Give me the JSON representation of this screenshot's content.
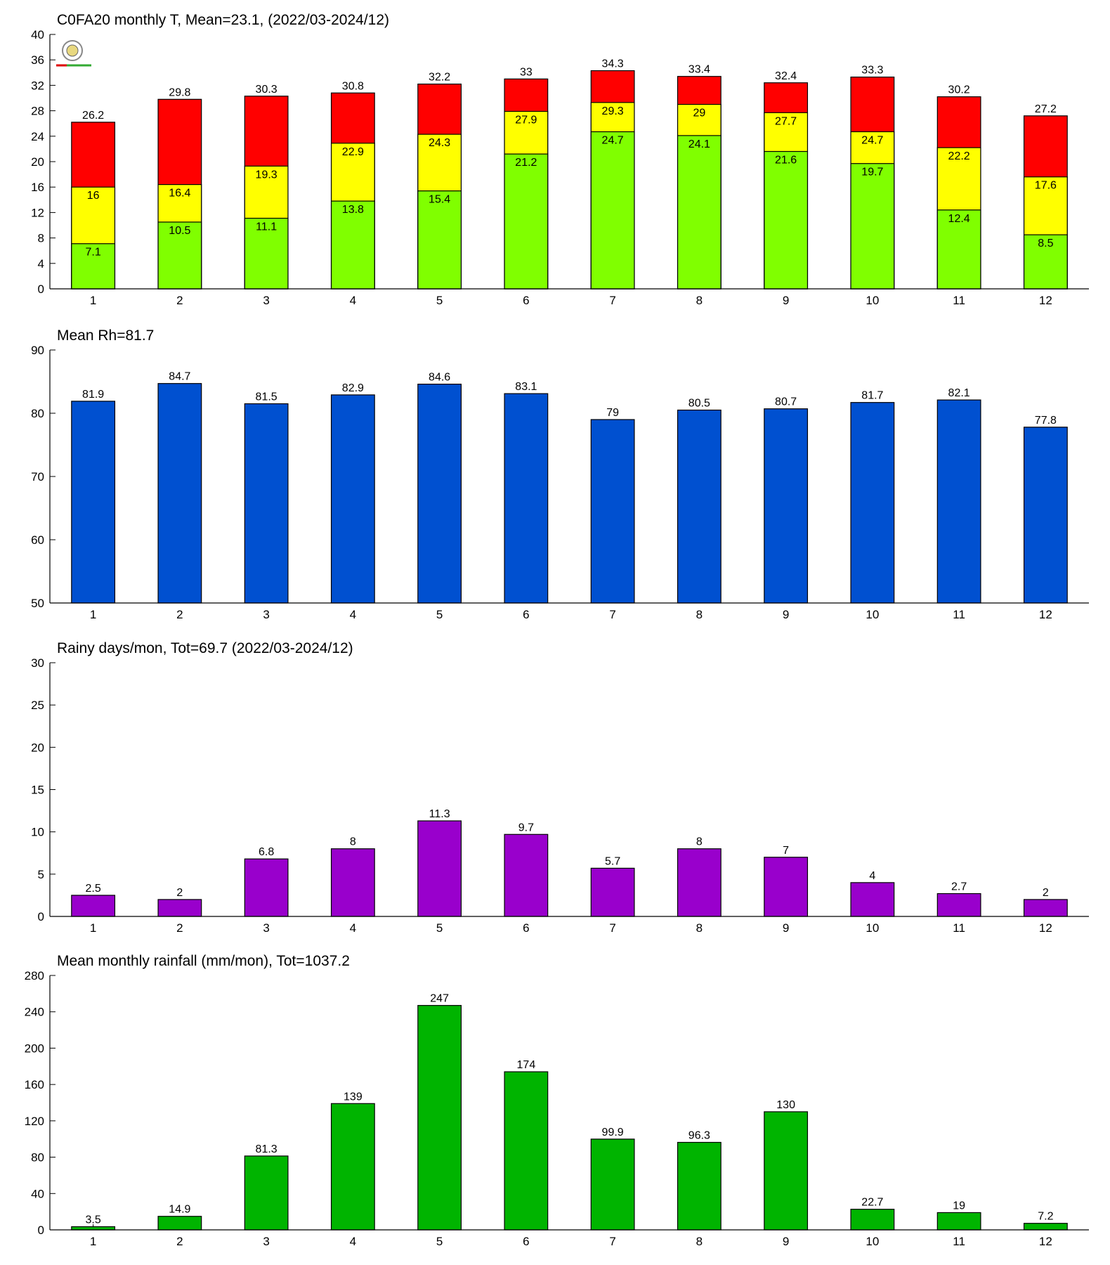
{
  "chart_data": [
    {
      "type": "bar",
      "title": "C0FA20 monthly T, Mean=23.1, (2022/03-2024/12)",
      "categories": [
        "1",
        "2",
        "3",
        "4",
        "5",
        "6",
        "7",
        "8",
        "9",
        "10",
        "11",
        "12"
      ],
      "series": [
        {
          "color": "#ff0000",
          "values": [
            26.2,
            29.8,
            30.3,
            30.8,
            32.2,
            33,
            34.3,
            33.4,
            32.4,
            33.3,
            30.2,
            27.2
          ]
        },
        {
          "color": "#ffff00",
          "values": [
            16,
            16.4,
            19.3,
            22.9,
            24.3,
            27.9,
            29.3,
            29,
            27.7,
            24.7,
            22.2,
            17.6
          ]
        },
        {
          "color": "#80ff00",
          "values": [
            7.1,
            10.5,
            11.1,
            13.8,
            15.4,
            21.2,
            24.7,
            24.1,
            21.6,
            19.7,
            12.4,
            8.5
          ]
        }
      ],
      "ylim": [
        0,
        40
      ],
      "yticks": [
        0,
        4,
        8,
        12,
        16,
        20,
        24,
        28,
        32,
        36,
        40
      ]
    },
    {
      "type": "bar",
      "title": "Mean Rh=81.7",
      "categories": [
        "1",
        "2",
        "3",
        "4",
        "5",
        "6",
        "7",
        "8",
        "9",
        "10",
        "11",
        "12"
      ],
      "values": [
        81.9,
        84.7,
        81.5,
        82.9,
        84.6,
        83.1,
        79,
        80.5,
        80.7,
        81.7,
        82.1,
        77.8
      ],
      "color": "#0050d0",
      "ylim": [
        50,
        90
      ],
      "yticks": [
        50,
        60,
        70,
        80,
        90
      ]
    },
    {
      "type": "bar",
      "title": "Rainy days/mon, Tot=69.7 (2022/03-2024/12)",
      "categories": [
        "1",
        "2",
        "3",
        "4",
        "5",
        "6",
        "7",
        "8",
        "9",
        "10",
        "11",
        "12"
      ],
      "values": [
        2.5,
        2,
        6.8,
        8,
        11.3,
        9.7,
        5.7,
        8,
        7,
        4,
        2.7,
        2
      ],
      "color": "#9900cc",
      "ylim": [
        0,
        30
      ],
      "yticks": [
        0,
        5,
        10,
        15,
        20,
        25,
        30
      ]
    },
    {
      "type": "bar",
      "title": "Mean monthly rainfall (mm/mon), Tot=1037.2",
      "categories": [
        "1",
        "2",
        "3",
        "4",
        "5",
        "6",
        "7",
        "8",
        "9",
        "10",
        "11",
        "12"
      ],
      "values": [
        3.5,
        14.9,
        81.3,
        139,
        247,
        174,
        99.9,
        96.3,
        130,
        22.7,
        19,
        7.2
      ],
      "color": "#00b400",
      "ylim": [
        0,
        280
      ],
      "yticks": [
        0,
        40,
        80,
        120,
        160,
        200,
        240,
        280
      ]
    }
  ]
}
